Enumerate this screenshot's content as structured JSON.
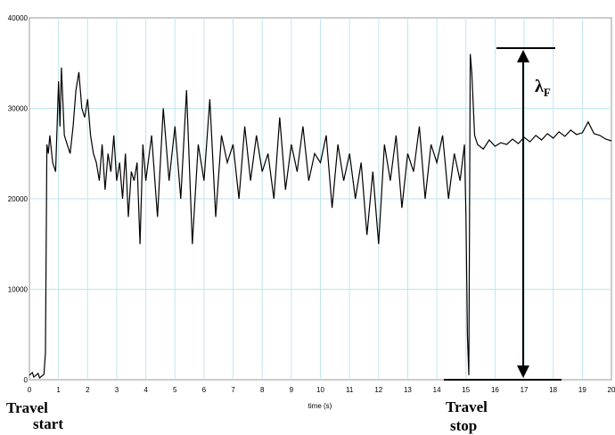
{
  "chart_data": {
    "type": "line",
    "xlabel": "time (s)",
    "ylabel": "",
    "xlim": [
      0,
      20
    ],
    "ylim": [
      0,
      40000
    ],
    "x_ticks": [
      "0",
      "1",
      "2",
      "3",
      "4",
      "5",
      "6",
      "7",
      "8",
      "9",
      "10",
      "11",
      "12",
      "13",
      "14",
      "15",
      "16",
      "17",
      "18",
      "19",
      "20"
    ],
    "y_ticks": [
      "0",
      "10000",
      "20000",
      "30000",
      "40000"
    ],
    "grid": true,
    "series": [
      {
        "color": "#000000",
        "x": [
          0,
          0.1,
          0.15,
          0.3,
          0.35,
          0.5,
          0.55,
          0.6,
          0.65,
          0.7,
          0.8,
          0.9,
          1.0,
          1.05,
          1.1,
          1.2,
          1.3,
          1.4,
          1.5,
          1.6,
          1.7,
          1.8,
          1.9,
          2.0,
          2.1,
          2.2,
          2.3,
          2.4,
          2.5,
          2.6,
          2.7,
          2.8,
          2.9,
          3.0,
          3.1,
          3.2,
          3.3,
          3.4,
          3.5,
          3.6,
          3.7,
          3.8,
          3.9,
          4.0,
          4.2,
          4.4,
          4.6,
          4.8,
          5.0,
          5.2,
          5.4,
          5.6,
          5.8,
          6.0,
          6.2,
          6.4,
          6.6,
          6.8,
          7.0,
          7.2,
          7.4,
          7.6,
          7.8,
          8.0,
          8.2,
          8.4,
          8.6,
          8.8,
          9.0,
          9.2,
          9.4,
          9.6,
          9.8,
          10.0,
          10.2,
          10.4,
          10.6,
          10.8,
          11.0,
          11.2,
          11.4,
          11.6,
          11.8,
          12.0,
          12.2,
          12.4,
          12.6,
          12.8,
          13.0,
          13.2,
          13.4,
          13.6,
          13.8,
          14.0,
          14.2,
          14.4,
          14.6,
          14.8,
          14.95,
          15.0,
          15.05,
          15.1,
          15.15,
          15.2,
          15.3,
          15.4,
          15.6,
          15.8,
          16.0,
          16.2,
          16.4,
          16.6,
          16.8,
          17.0,
          17.2,
          17.4,
          17.6,
          17.8,
          18.0,
          18.2,
          18.4,
          18.6,
          18.8,
          19.0,
          19.2,
          19.4,
          19.6,
          19.8,
          20.0
        ],
        "y": [
          500,
          800,
          300,
          700,
          200,
          600,
          3000,
          26000,
          25000,
          27000,
          24000,
          23000,
          33000,
          28000,
          34500,
          27000,
          26000,
          25000,
          28000,
          32000,
          34000,
          30000,
          29000,
          31000,
          27000,
          25000,
          24000,
          22000,
          26000,
          21000,
          25000,
          23000,
          27000,
          22000,
          24000,
          20000,
          25000,
          18000,
          23000,
          22000,
          24000,
          15000,
          26000,
          22000,
          27000,
          18000,
          30000,
          22000,
          28000,
          20000,
          32000,
          15000,
          26000,
          22000,
          31000,
          18000,
          27000,
          24000,
          26000,
          20000,
          28000,
          22000,
          27000,
          23000,
          25000,
          20000,
          29000,
          21000,
          26000,
          23000,
          28000,
          22000,
          25000,
          24000,
          27000,
          19000,
          26000,
          22000,
          25000,
          20000,
          24000,
          16000,
          23000,
          15000,
          26000,
          22000,
          27000,
          19000,
          25000,
          23000,
          28000,
          20000,
          26000,
          24000,
          27000,
          20000,
          25000,
          22000,
          26000,
          18000,
          5000,
          500,
          36000,
          34000,
          27000,
          26000,
          25500,
          26500,
          25800,
          26200,
          26000,
          26600,
          26100,
          26800,
          26300,
          27000,
          26500,
          27200,
          26700,
          27400,
          26900,
          27600,
          27100,
          27300,
          28500,
          27200,
          27000,
          26600,
          26400
        ]
      }
    ]
  },
  "annotations": {
    "lambda_symbol": "λ",
    "lambda_sub": "F",
    "travel_start": [
      "Travel",
      "start"
    ],
    "travel_stop": [
      "Travel",
      "stop"
    ]
  }
}
